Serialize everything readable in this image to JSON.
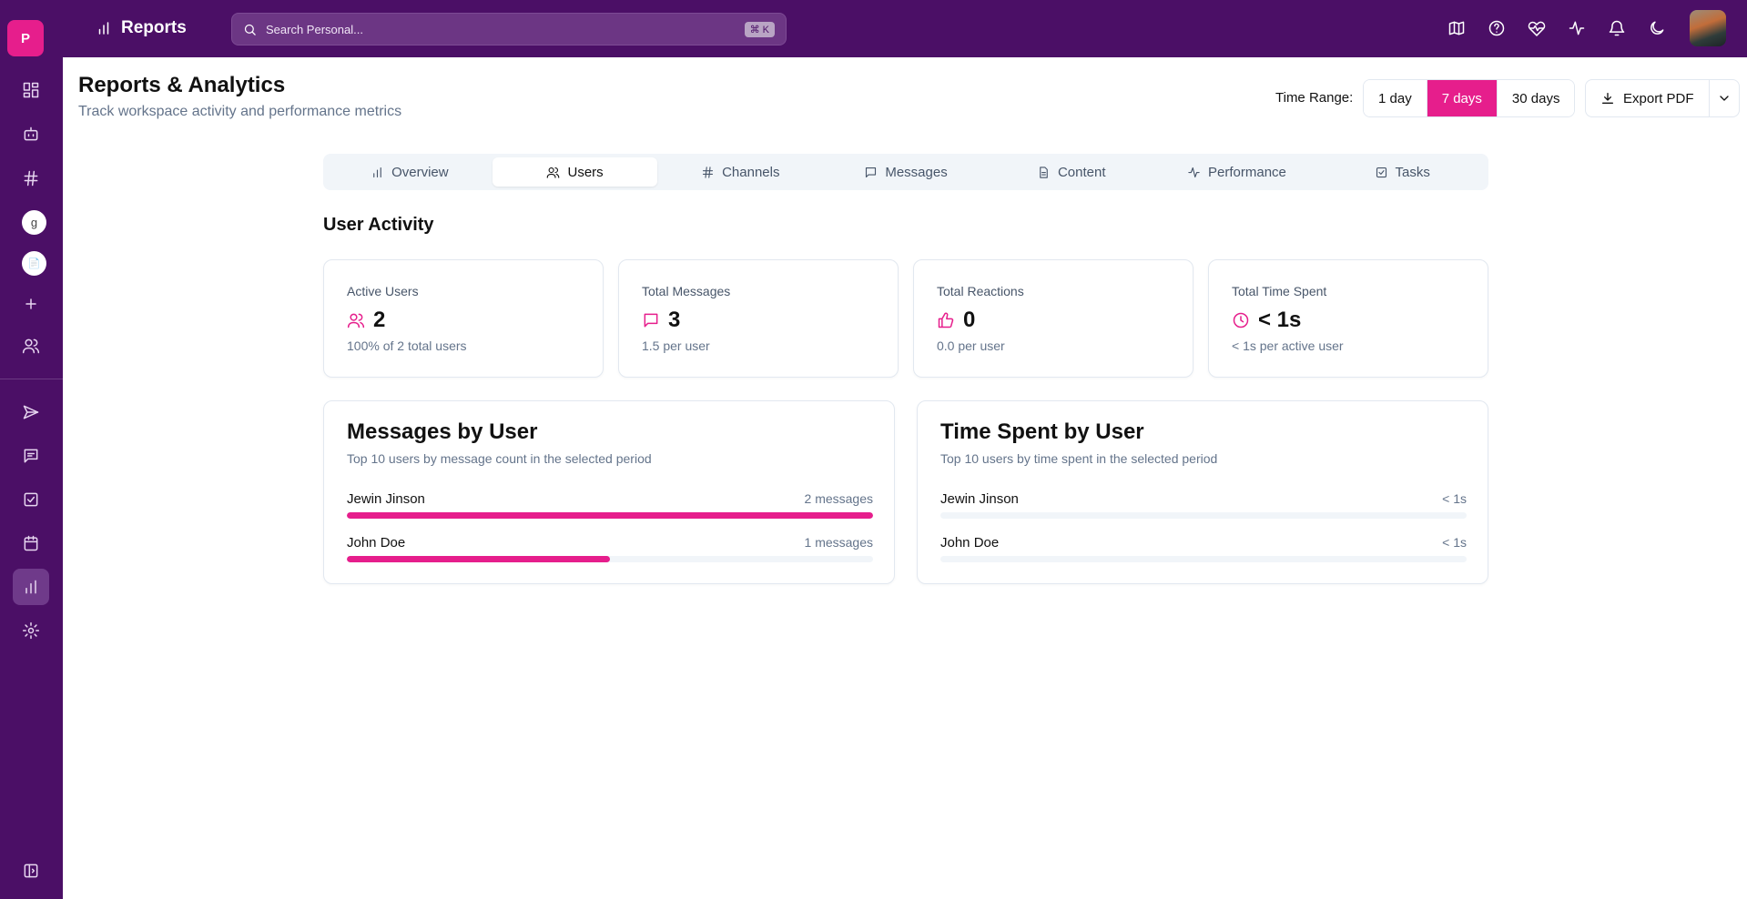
{
  "sidebar": {
    "logo_letter": "P",
    "workspace_g": "g",
    "workspace_doc": "📄"
  },
  "topbar": {
    "title": "Reports",
    "search_placeholder": "Search Personal...",
    "search_shortcut": "⌘ K"
  },
  "header": {
    "title": "Reports & Analytics",
    "subtitle": "Track workspace activity and performance metrics",
    "time_range_label": "Time Range:",
    "time_ranges": [
      "1 day",
      "7 days",
      "30 days"
    ],
    "selected_range": "7 days",
    "export_label": "Export PDF"
  },
  "tabs": [
    {
      "label": "Overview",
      "icon": "bar-chart-icon"
    },
    {
      "label": "Users",
      "icon": "users-icon"
    },
    {
      "label": "Channels",
      "icon": "hash-icon"
    },
    {
      "label": "Messages",
      "icon": "message-icon"
    },
    {
      "label": "Content",
      "icon": "file-icon"
    },
    {
      "label": "Performance",
      "icon": "activity-icon"
    },
    {
      "label": "Tasks",
      "icon": "check-square-icon"
    }
  ],
  "active_tab": "Users",
  "section_title": "User Activity",
  "stats": [
    {
      "label": "Active Users",
      "value": "2",
      "sub": "100% of 2 total users"
    },
    {
      "label": "Total Messages",
      "value": "3",
      "sub": "1.5 per user"
    },
    {
      "label": "Total Reactions",
      "value": "0",
      "sub": "0.0 per user"
    },
    {
      "label": "Total Time Spent",
      "value": "< 1s",
      "sub": "< 1s per active user"
    }
  ],
  "messages_by_user": {
    "title": "Messages by User",
    "subtitle": "Top 10 users by message count in the selected period",
    "rows": [
      {
        "name": "Jewin Jinson",
        "value_label": "2 messages",
        "fraction": 1.0
      },
      {
        "name": "John Doe",
        "value_label": "1 messages",
        "fraction": 0.5
      }
    ]
  },
  "time_by_user": {
    "title": "Time Spent by User",
    "subtitle": "Top 10 users by time spent in the selected period",
    "rows": [
      {
        "name": "Jewin Jinson",
        "value_label": "< 1s",
        "fraction": 0
      },
      {
        "name": "John Doe",
        "value_label": "< 1s",
        "fraction": 0
      }
    ]
  },
  "colors": {
    "brand": "#4b0f66",
    "accent": "#e61e8c"
  }
}
